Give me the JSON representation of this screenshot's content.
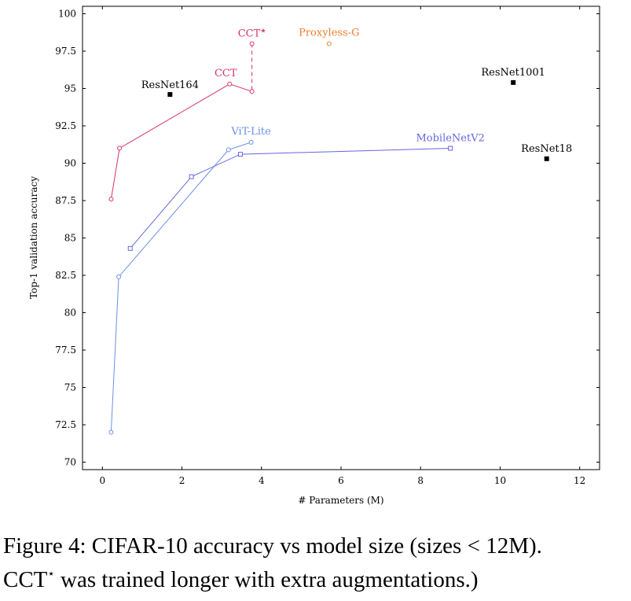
{
  "chart_data": {
    "type": "scatter",
    "xlabel": "# Parameters (M)",
    "ylabel": "Top-1 validation accuracy",
    "xlim": [
      -0.5,
      12.5
    ],
    "ylim": [
      69.5,
      100.5
    ],
    "xticks": [
      0,
      2,
      4,
      6,
      8,
      10,
      12
    ],
    "yticks": [
      70,
      72.5,
      75,
      77.5,
      80,
      82.5,
      85,
      87.5,
      90,
      92.5,
      95,
      97.5,
      100
    ],
    "ytick_labels": [
      "70",
      "72.5",
      "75",
      "77.5",
      "80",
      "82.5",
      "85",
      "87.5",
      "90",
      "92.5",
      "95",
      "97.5",
      "100"
    ],
    "grid": false,
    "series": [
      {
        "name": "CCT",
        "color": "#d6336c",
        "marker": "circle",
        "line": true,
        "points": [
          [
            0.22,
            87.6
          ],
          [
            0.43,
            91.0
          ],
          [
            3.2,
            95.3
          ],
          [
            3.76,
            94.8
          ]
        ]
      },
      {
        "name": "CCT★",
        "color": "#d6336c",
        "marker": "circle",
        "line": false,
        "points": [
          [
            3.76,
            98.0
          ]
        ],
        "connector_to": [
          3.76,
          94.8
        ],
        "connector_style": "dashed"
      },
      {
        "name": "ViT-Lite",
        "color": "#6b8fe6",
        "marker": "circle",
        "line": true,
        "points": [
          [
            0.22,
            72.0
          ],
          [
            0.41,
            82.4
          ],
          [
            3.17,
            90.9
          ],
          [
            3.74,
            91.4
          ]
        ]
      },
      {
        "name": "MobileNetV2",
        "color": "#6666e0",
        "marker": "square",
        "line": true,
        "points": [
          [
            0.7,
            84.3
          ],
          [
            2.24,
            89.1
          ],
          [
            3.47,
            90.6
          ],
          [
            8.75,
            91.0
          ]
        ]
      },
      {
        "name": "Proxyless-G",
        "color": "#f08030",
        "marker": "circle",
        "line": false,
        "points": [
          [
            5.7,
            98.0
          ]
        ]
      },
      {
        "name": "ResNet164",
        "color": "#000000",
        "marker": "filled-square",
        "line": false,
        "points": [
          [
            1.7,
            94.6
          ]
        ]
      },
      {
        "name": "ResNet1001",
        "color": "#000000",
        "marker": "filled-square",
        "line": false,
        "points": [
          [
            10.33,
            95.4
          ]
        ]
      },
      {
        "name": "ResNet18",
        "color": "#000000",
        "marker": "filled-square",
        "line": false,
        "points": [
          [
            11.17,
            90.3
          ]
        ]
      }
    ],
    "labels": [
      {
        "text": "CCT",
        "color": "#d6336c",
        "series": "CCT"
      },
      {
        "text": "CCT",
        "superscript": "★",
        "color": "#d6336c",
        "series": "CCT★"
      },
      {
        "text": "Proxyless-G",
        "color": "#f08030",
        "series": "Proxyless-G"
      },
      {
        "text": "ViT-Lite",
        "color": "#6b8fe6",
        "series": "ViT-Lite"
      },
      {
        "text": "MobileNetV2",
        "color": "#6666e0",
        "series": "MobileNetV2"
      },
      {
        "text": "ResNet164",
        "color": "#000000",
        "series": "ResNet164"
      },
      {
        "text": "ResNet1001",
        "color": "#000000",
        "series": "ResNet1001"
      },
      {
        "text": "ResNet18",
        "color": "#000000",
        "series": "ResNet18"
      }
    ]
  },
  "caption": {
    "line1": "Figure 4: CIFAR-10 accuracy vs model size (sizes < 12M).",
    "line2_prefix": "CCT",
    "line2_sup": "⋆",
    "line2_rest": " was trained longer with extra augmentations.)"
  }
}
